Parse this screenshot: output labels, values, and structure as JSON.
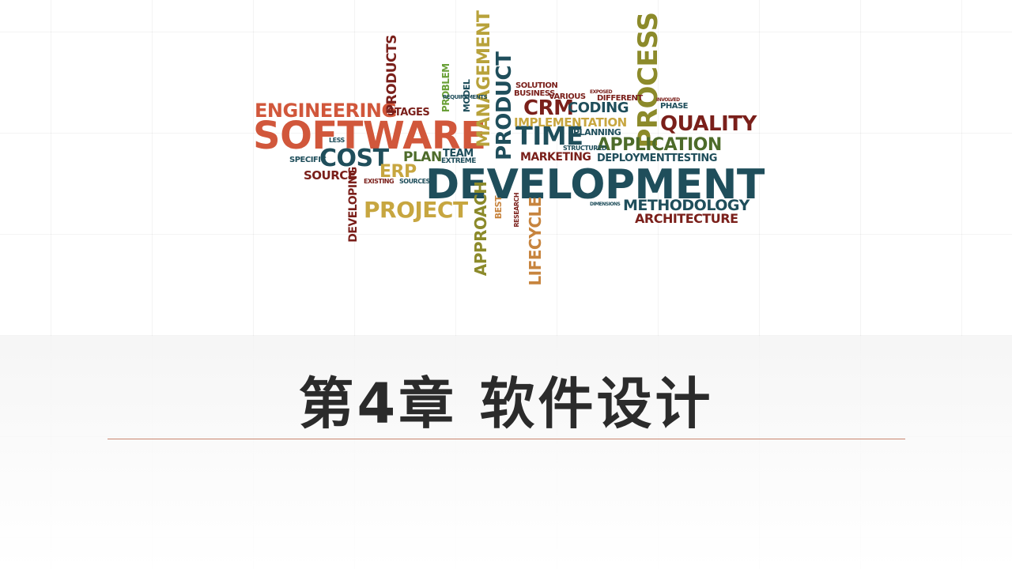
{
  "slide": {
    "title": "第4章 软件设计"
  },
  "wordcloud": {
    "words": [
      {
        "text": "DEVELOPMENT",
        "color": "#1f4e5b"
      },
      {
        "text": "SOFTWARE",
        "color": "#d1573b"
      },
      {
        "text": "ENGINEERING",
        "color": "#d1573b"
      },
      {
        "text": "PROCESS",
        "color": "#8c8a2a"
      },
      {
        "text": "QUALITY",
        "color": "#7a1f1a"
      },
      {
        "text": "APPLICATION",
        "color": "#4d6b2a"
      },
      {
        "text": "PROJECT",
        "color": "#c7a640"
      },
      {
        "text": "METHODOLOGY",
        "color": "#1f4e5b"
      },
      {
        "text": "ARCHITECTURE",
        "color": "#7a1f1a"
      },
      {
        "text": "TIME",
        "color": "#1f4e5b"
      },
      {
        "text": "CRM",
        "color": "#7a1f1a"
      },
      {
        "text": "CODING",
        "color": "#1f4e5b"
      },
      {
        "text": "IMPLEMENTATION",
        "color": "#c7a640"
      },
      {
        "text": "MANAGEMENT",
        "color": "#b8a23b"
      },
      {
        "text": "PRODUCT",
        "color": "#1f4e5b"
      },
      {
        "text": "PRODUCTS",
        "color": "#7a1f1a"
      },
      {
        "text": "COST",
        "color": "#1f4e5b"
      },
      {
        "text": "ERP",
        "color": "#c7a640"
      },
      {
        "text": "PLAN",
        "color": "#4d6b2a"
      },
      {
        "text": "TEAM",
        "color": "#1f4e5b"
      },
      {
        "text": "STAGES",
        "color": "#7a1f1a"
      },
      {
        "text": "SOURCE",
        "color": "#7a1f1a"
      },
      {
        "text": "SPECIFIC",
        "color": "#1f4e5b"
      },
      {
        "text": "MARKETING",
        "color": "#7a1f1a"
      },
      {
        "text": "DEPLOYMENT",
        "color": "#1f4e5b"
      },
      {
        "text": "TESTING",
        "color": "#1f4e5b"
      },
      {
        "text": "PLANNING",
        "color": "#1f4e5b"
      },
      {
        "text": "SOLUTION",
        "color": "#7a1f1a"
      },
      {
        "text": "BUSINESS",
        "color": "#7a1f1a"
      },
      {
        "text": "VARIOUS",
        "color": "#7a1f1a"
      },
      {
        "text": "DIFFERENT",
        "color": "#7a1f1a"
      },
      {
        "text": "PHASE",
        "color": "#1f4e5b"
      },
      {
        "text": "LIFECYCLE",
        "color": "#c7843e"
      },
      {
        "text": "APPROACH",
        "color": "#8c8a2a"
      },
      {
        "text": "DEVELOPING",
        "color": "#7a1f1a"
      },
      {
        "text": "PROBLEM",
        "color": "#6aa038"
      },
      {
        "text": "MODEL",
        "color": "#1f4e5b"
      },
      {
        "text": "REQUIREMENTS",
        "color": "#1f4e5b"
      },
      {
        "text": "EXTREME",
        "color": "#1f4e5b"
      },
      {
        "text": "STRUCTURED",
        "color": "#1f4e5b"
      },
      {
        "text": "BEST",
        "color": "#c7843e"
      },
      {
        "text": "RESEARCH",
        "color": "#7a1f1a"
      },
      {
        "text": "EXISTING",
        "color": "#7a1f1a"
      },
      {
        "text": "SOURCES",
        "color": "#1f4e5b"
      },
      {
        "text": "LESS",
        "color": "#1f4e5b"
      },
      {
        "text": "DIMENSIONS",
        "color": "#1f4e5b"
      },
      {
        "text": "INVOLVED",
        "color": "#7a1f1a"
      },
      {
        "text": "EXPOSED",
        "color": "#7a1f1a"
      }
    ]
  }
}
